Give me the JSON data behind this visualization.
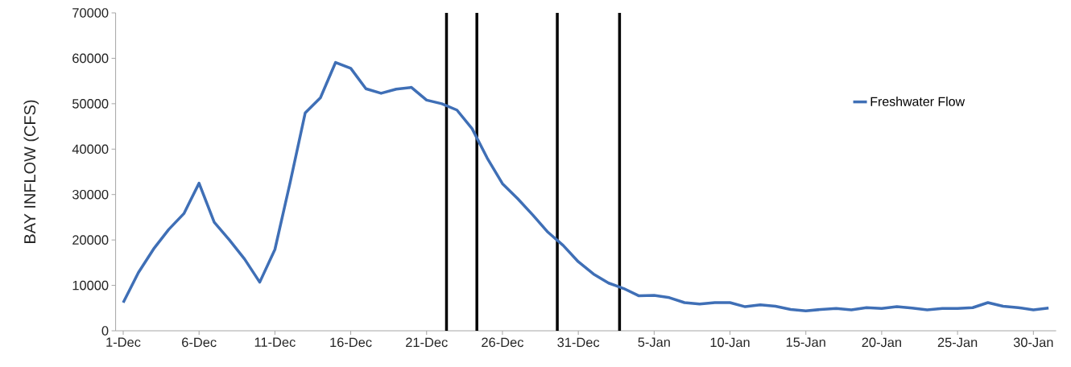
{
  "chart_data": {
    "type": "line",
    "ylabel": "BAY INFLOW (CFS)",
    "categories": [
      "1-Dec",
      null,
      null,
      null,
      null,
      "6-Dec",
      null,
      null,
      null,
      null,
      "11-Dec",
      null,
      null,
      null,
      null,
      "16-Dec",
      null,
      null,
      null,
      null,
      "21-Dec",
      null,
      null,
      null,
      null,
      "26-Dec",
      null,
      null,
      null,
      null,
      "31-Dec",
      null,
      null,
      null,
      null,
      "5-Jan",
      null,
      null,
      null,
      null,
      "10-Jan",
      null,
      null,
      null,
      null,
      "15-Jan",
      null,
      null,
      null,
      null,
      "20-Jan",
      null,
      null,
      null,
      null,
      "25-Jan",
      null,
      null,
      null,
      null,
      "30-Jan",
      null
    ],
    "series": [
      {
        "name": "Freshwater Flow",
        "color": "#3f6fb6",
        "values": [
          6200,
          12800,
          18000,
          22300,
          25800,
          32500,
          23900,
          20000,
          15800,
          10700,
          17900,
          32600,
          48000,
          51300,
          59100,
          57800,
          53300,
          52300,
          53200,
          53600,
          50800,
          50000,
          48600,
          44500,
          38000,
          32400,
          29100,
          25500,
          21700,
          18800,
          15200,
          12500,
          10500,
          9300,
          7700,
          7800,
          7300,
          6200,
          5900,
          6200,
          6200,
          5300,
          5700,
          5400,
          4700,
          4400,
          4700,
          4900,
          4600,
          5100,
          4900,
          5300,
          5000,
          4600,
          4900,
          4900,
          5100,
          6200,
          5400,
          5100,
          4600,
          5000
        ]
      }
    ],
    "ylim": [
      0,
      70000
    ],
    "yticks": [
      0,
      10000,
      20000,
      30000,
      40000,
      50000,
      60000,
      70000
    ],
    "grid": false,
    "legend": "right",
    "marker": "none",
    "line_style": "solid"
  }
}
